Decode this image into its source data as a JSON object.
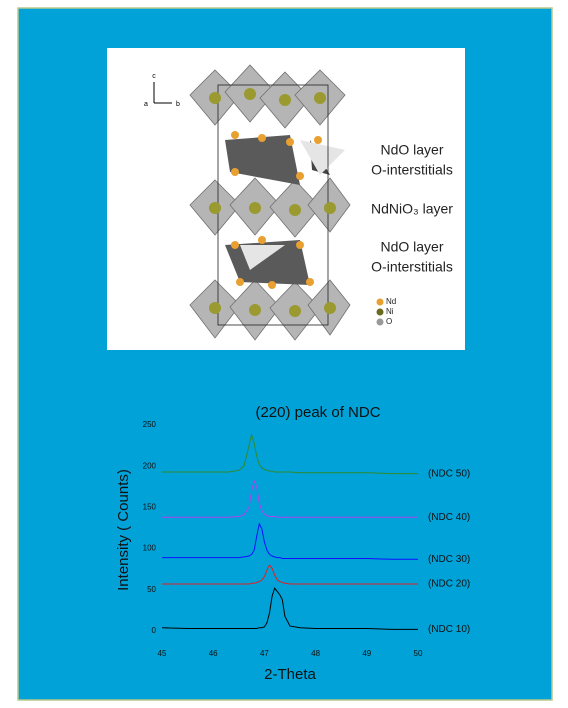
{
  "figure": {
    "axis_c": "c",
    "axis_a": "a",
    "axis_b": "b",
    "label_top_1": "NdO layer",
    "label_top_2": "O-interstitials",
    "label_mid": "NdNiO₃ layer",
    "label_bot_1": "NdO layer",
    "label_bot_2": "O-interstitials",
    "legend": [
      "Nd",
      "Ni",
      "O"
    ]
  },
  "chart_data": {
    "type": "line",
    "title": "(220) peak of NDC",
    "x_label": "2-Theta",
    "y_label": "Intensity ( Counts)",
    "x": [
      45,
      45.5,
      46,
      46.3,
      46.5,
      46.6,
      46.7,
      46.75,
      46.8,
      46.85,
      46.9,
      46.95,
      47.0,
      47.05,
      47.1,
      47.15,
      47.2,
      47.25,
      47.3,
      47.35,
      47.4,
      47.5,
      47.7,
      48,
      48.5,
      49,
      49.5,
      50
    ],
    "series": [
      {
        "name": "(NDC 10)",
        "color": "#000000",
        "values": [
          4,
          3,
          3,
          3,
          3,
          3,
          3,
          3,
          3,
          3,
          4,
          4,
          5,
          10,
          22,
          42,
          52,
          48,
          44,
          38,
          18,
          6,
          4,
          3,
          3,
          3,
          2,
          2
        ]
      },
      {
        "name": "(NDC 20)",
        "color": "#e02020",
        "values": [
          57,
          57,
          57,
          57,
          57,
          57,
          57,
          58,
          58,
          59,
          60,
          62,
          66,
          74,
          80,
          76,
          68,
          62,
          60,
          59,
          58,
          57,
          57,
          57,
          57,
          57,
          57,
          57
        ]
      },
      {
        "name": "(NDC 30)",
        "color": "#1010ff",
        "values": [
          89,
          89,
          89,
          89,
          89,
          90,
          91,
          93,
          98,
          115,
          130,
          124,
          108,
          98,
          93,
          91,
          90,
          89,
          89,
          88,
          88,
          88,
          88,
          88,
          88,
          88,
          87,
          87
        ]
      },
      {
        "name": "(NDC 40)",
        "color": "#b040f0",
        "values": [
          138,
          138,
          138,
          138,
          139,
          141,
          150,
          170,
          182,
          175,
          155,
          146,
          142,
          140,
          139,
          139,
          139,
          138,
          138,
          138,
          138,
          138,
          138,
          138,
          138,
          138,
          138,
          138
        ]
      },
      {
        "name": "(NDC 50)",
        "color": "#2e8b2e",
        "values": [
          193,
          193,
          193,
          193,
          195,
          200,
          225,
          238,
          228,
          212,
          202,
          198,
          196,
          195,
          194,
          194,
          193,
          193,
          193,
          193,
          193,
          193,
          192,
          192,
          192,
          192,
          191,
          191
        ]
      }
    ],
    "xlim": [
      45,
      50
    ],
    "ylim": [
      0,
      250
    ],
    "xticks": [
      45,
      46,
      47,
      48,
      49,
      50
    ],
    "yticks": [
      0,
      50,
      100,
      150,
      200,
      250
    ],
    "grid": false
  }
}
